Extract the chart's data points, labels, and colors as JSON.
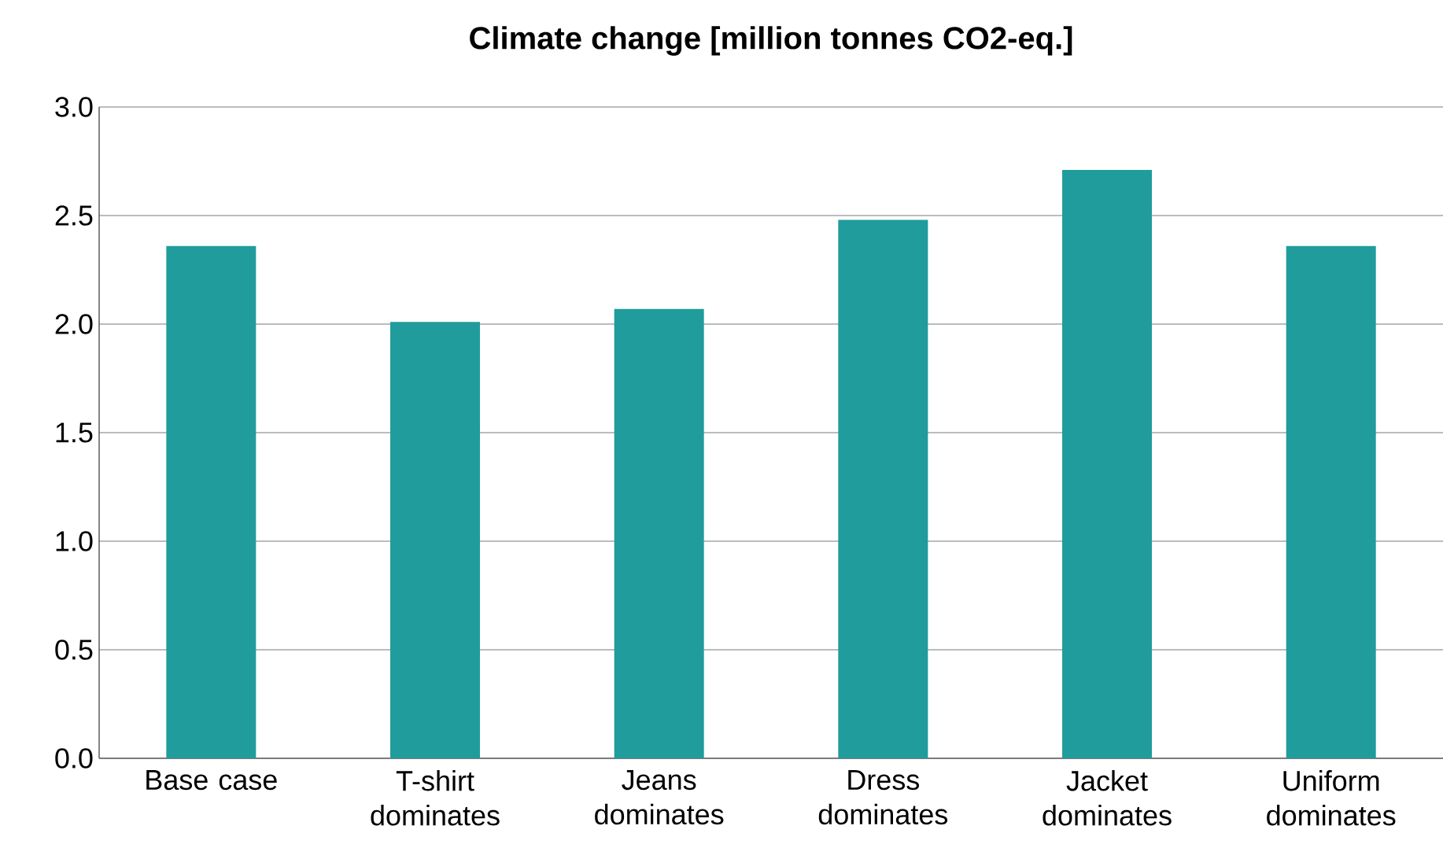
{
  "chart_data": {
    "type": "bar",
    "title": "**Climate change [million tonnes CO2-eq.]**",
    "categories": [
      "Base case",
      "T-shirt dominates",
      "Jeans dominates",
      "Dress dominates",
      "Jacket dominates",
      "Uniform dominates"
    ],
    "values": [
      2.36,
      2.01,
      2.07,
      2.48,
      2.71,
      2.36
    ],
    "color": "#209c9c",
    "ylim": [
      0,
      3
    ],
    "yticks": [
      {
        "value": 0,
        "label": "0.0"
      },
      {
        "value": 0.5,
        "label": "0.5"
      },
      {
        "value": 1,
        "label": "1.0"
      },
      {
        "value": 1.5,
        "label": "1.5"
      },
      {
        "value": 2,
        "label": "2.0"
      },
      {
        "value": 2.5,
        "label": "2.5"
      },
      {
        "value": 3,
        "label": "3.0"
      }
    ],
    "grid": "y"
  }
}
